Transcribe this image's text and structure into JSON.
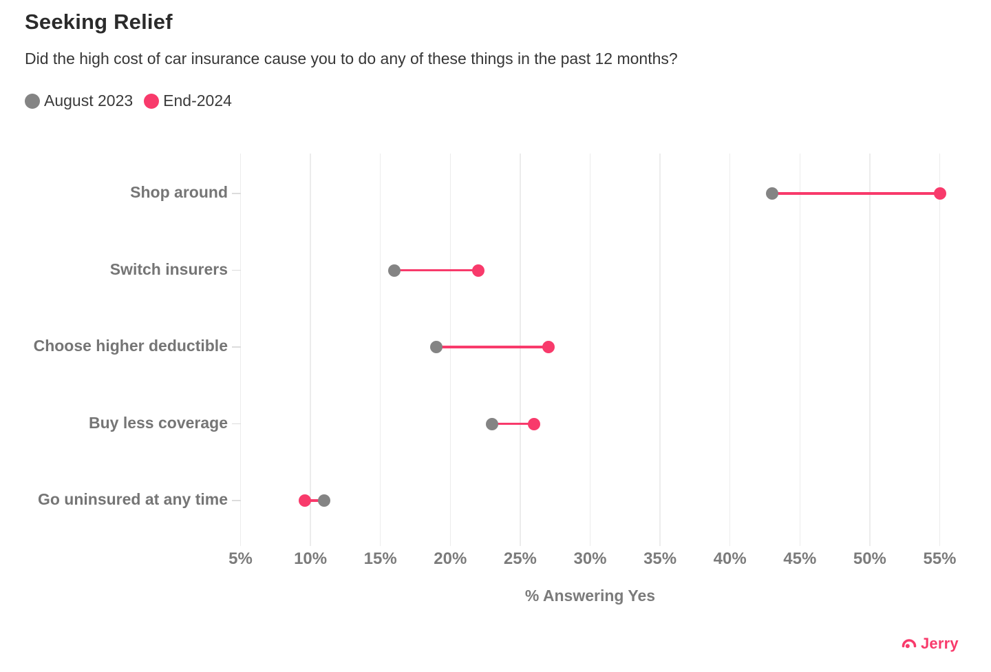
{
  "header": {
    "title": "Seeking Relief",
    "subtitle": "Did the high cost of car insurance cause you to do any of these things in the past 12 months?"
  },
  "legend": {
    "items": [
      {
        "label": "August 2023",
        "color": "#848484"
      },
      {
        "label": "End-2024",
        "color": "#f83a6b"
      }
    ]
  },
  "chart_data": {
    "type": "scatter",
    "subtype": "dumbbell",
    "title": "Seeking Relief",
    "subtitle": "Did the high cost of car insurance cause you to do any of these things in the past 12 months?",
    "categories": [
      "Shop around",
      "Switch insurers",
      "Choose higher deductible",
      "Buy less coverage",
      "Go uninsured at any time"
    ],
    "series": [
      {
        "name": "August 2023",
        "color": "#848484",
        "values": [
          43,
          16,
          19,
          23,
          11
        ]
      },
      {
        "name": "End-2024",
        "color": "#f83a6b",
        "values": [
          55,
          22,
          27,
          26,
          9.6
        ]
      }
    ],
    "connector_color": "#f83a6b",
    "xlabel": "% Answering Yes",
    "ylabel": "",
    "xlim": [
      5,
      55
    ],
    "x_ticks": [
      5,
      10,
      15,
      20,
      25,
      30,
      35,
      40,
      45,
      50,
      55
    ],
    "x_tick_suffix": "%",
    "grid": "vertical-only",
    "legend_position": "top-left"
  },
  "footer": {
    "brand": "Jerry",
    "brand_color": "#f83a6b"
  }
}
